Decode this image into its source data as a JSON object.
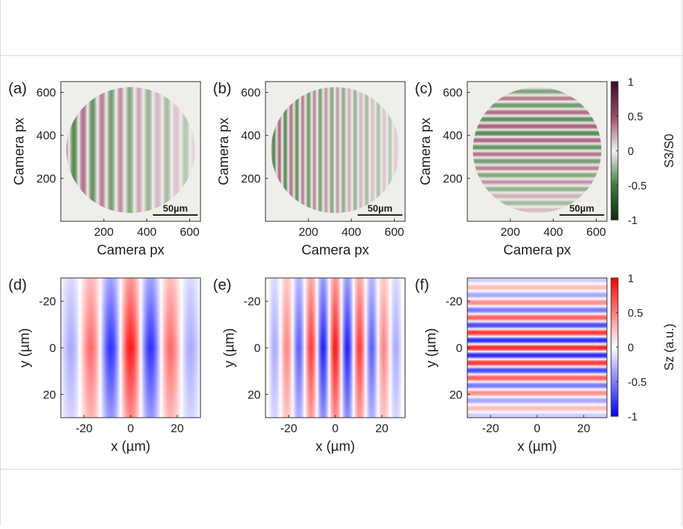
{
  "figure": {
    "top_colorbar": {
      "label": "S3/S0",
      "ticks": [
        "1",
        "0.5",
        "0",
        "-0.5",
        "-1"
      ],
      "colors": {
        "max": "#3a0a28",
        "mid_pos": "#9c4a6a",
        "zero": "#f2f2f0",
        "mid_neg": "#3f7a3c",
        "min": "#0f2a0c"
      }
    },
    "bottom_colorbar": {
      "label": "Sz (a.u.)",
      "ticks": [
        "1",
        "0.5",
        "0",
        "-0.5",
        "-1"
      ],
      "colors": {
        "max": "#ff0000",
        "zero": "#ffffff",
        "min": "#0000ff"
      }
    },
    "scale_bar_label": "50µm"
  },
  "chart_data": [
    {
      "type": "heatmap",
      "panel_label": "(a)",
      "xlabel": "Camera px",
      "ylabel": "Camera px",
      "xticks": [
        "200",
        "400",
        "600"
      ],
      "yticks": [
        "200",
        "400",
        "600"
      ],
      "xlim": [
        0,
        650
      ],
      "ylim": [
        650,
        0
      ],
      "pattern": "vertical-stripes",
      "stripe_count": 15,
      "color_scale": "S3/S0",
      "scale_bar": "50µm"
    },
    {
      "type": "heatmap",
      "panel_label": "(b)",
      "xlabel": "Camera px",
      "ylabel": "Camera px",
      "xticks": [
        "200",
        "400",
        "600"
      ],
      "yticks": [
        "200",
        "400",
        "600"
      ],
      "xlim": [
        0,
        650
      ],
      "ylim": [
        650,
        0
      ],
      "pattern": "vertical-stripes",
      "stripe_count": 24,
      "color_scale": "S3/S0",
      "scale_bar": "50µm"
    },
    {
      "type": "heatmap",
      "panel_label": "(c)",
      "xlabel": "Camera px",
      "ylabel": "Camera px",
      "xticks": [
        "200",
        "400",
        "600"
      ],
      "yticks": [
        "200",
        "400",
        "600"
      ],
      "xlim": [
        0,
        650
      ],
      "ylim": [
        650,
        0
      ],
      "pattern": "horizontal-stripes",
      "stripe_count": 20,
      "color_scale": "S3/S0",
      "scale_bar": "50µm"
    },
    {
      "type": "heatmap",
      "panel_label": "(d)",
      "xlabel": "x (µm)",
      "ylabel": "y (µm)",
      "xticks": [
        "-20",
        "0",
        "20"
      ],
      "yticks": [
        "20",
        "0",
        "-20"
      ],
      "xlim": [
        -30,
        30
      ],
      "ylim": [
        -30,
        30
      ],
      "pattern": "vertical-stripes",
      "period_um": 17.5,
      "phase": 0.5,
      "color_scale": "Sz"
    },
    {
      "type": "heatmap",
      "panel_label": "(e)",
      "xlabel": "x (µm)",
      "ylabel": "y (µm)",
      "xticks": [
        "-20",
        "0",
        "20"
      ],
      "yticks": [
        "20",
        "0",
        "-20"
      ],
      "xlim": [
        -30,
        30
      ],
      "ylim": [
        -30,
        30
      ],
      "pattern": "vertical-stripes",
      "period_um": 10.5,
      "phase": 0.5,
      "color_scale": "Sz"
    },
    {
      "type": "heatmap",
      "panel_label": "(f)",
      "xlabel": "x (µm)",
      "ylabel": "y (µm)",
      "xticks": [
        "-20",
        "0",
        "20"
      ],
      "yticks": [
        "20",
        "0",
        "-20"
      ],
      "xlim": [
        -30,
        30
      ],
      "ylim": [
        -30,
        30
      ],
      "pattern": "horizontal-stripes",
      "period_um": 6.5,
      "phase": 0.5,
      "color_scale": "Sz"
    }
  ]
}
